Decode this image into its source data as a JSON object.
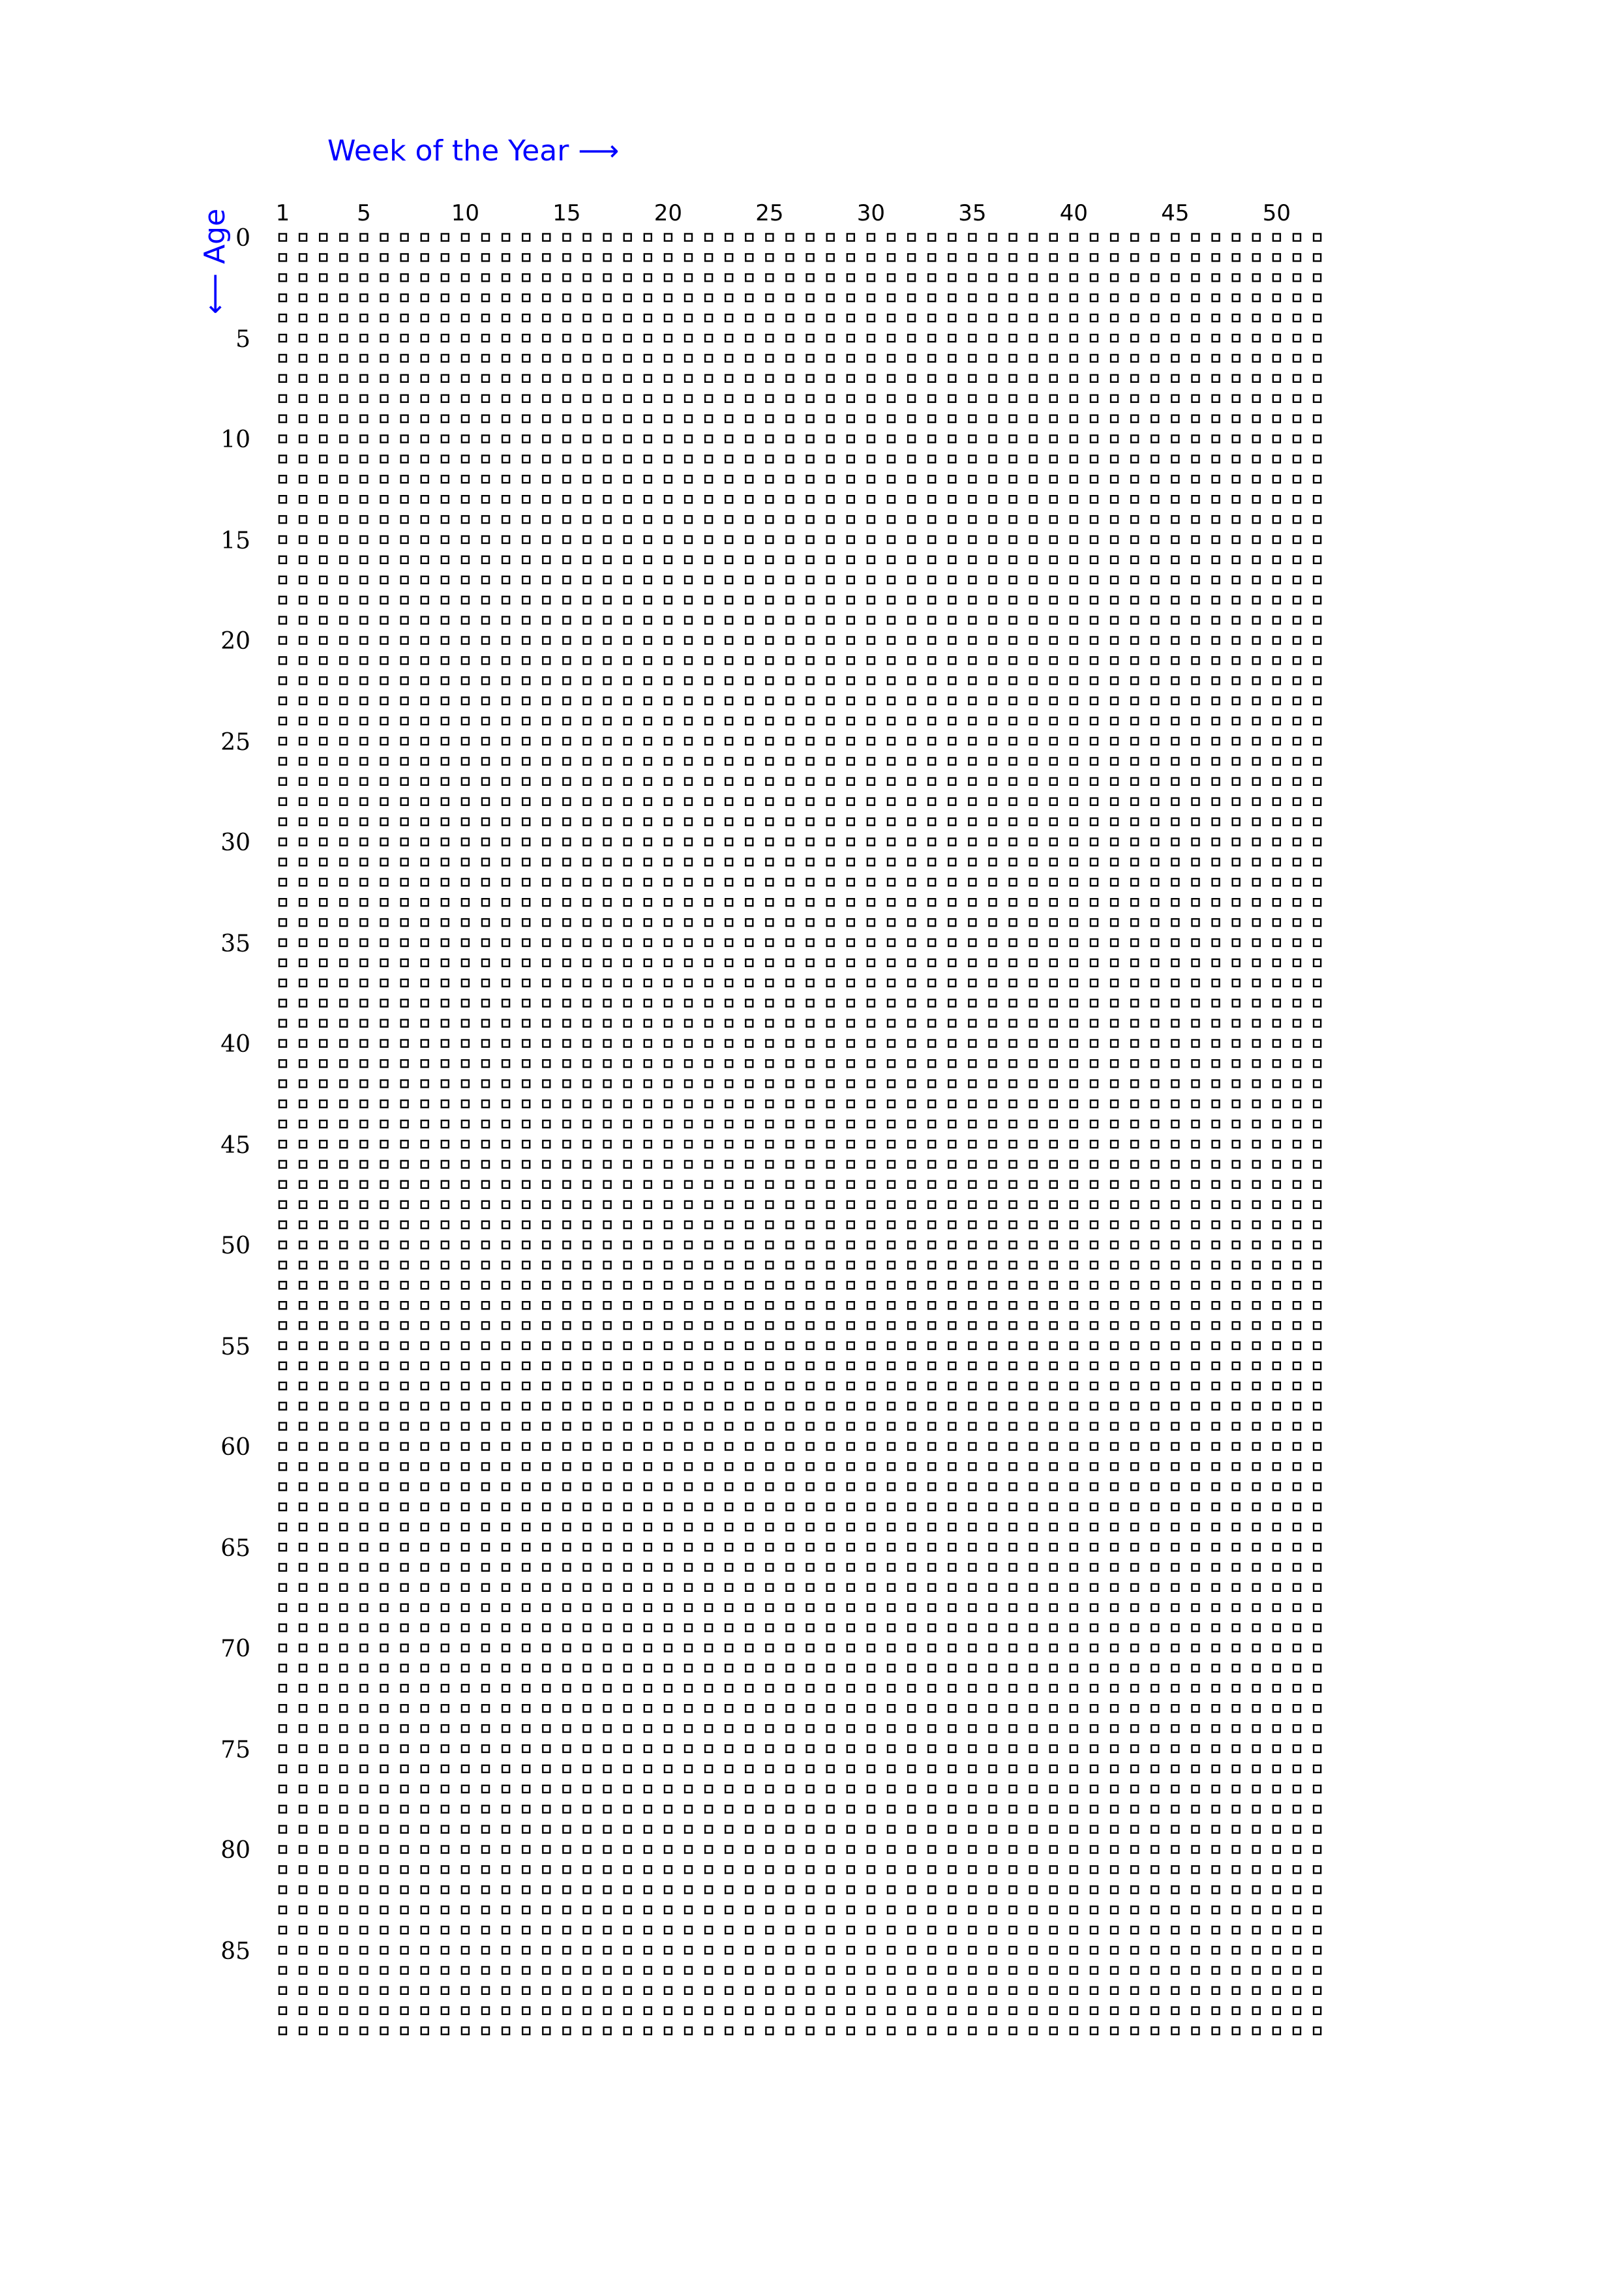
{
  "header": {
    "x_title": "Week of the Year ⟶",
    "y_title": "⟵ Age"
  },
  "axes": {
    "week_labels": [
      "1",
      "5",
      "10",
      "15",
      "20",
      "25",
      "30",
      "35",
      "40",
      "45",
      "50"
    ],
    "age_labels": [
      "0",
      "5",
      "10",
      "15",
      "20",
      "25",
      "30",
      "35",
      "40",
      "45",
      "50",
      "55",
      "60",
      "65",
      "70",
      "75",
      "80",
      "85"
    ]
  },
  "grid": {
    "weeks_per_row": 52,
    "rows": 90,
    "box_color": "#000000",
    "accent_color": "#0000ff"
  }
}
